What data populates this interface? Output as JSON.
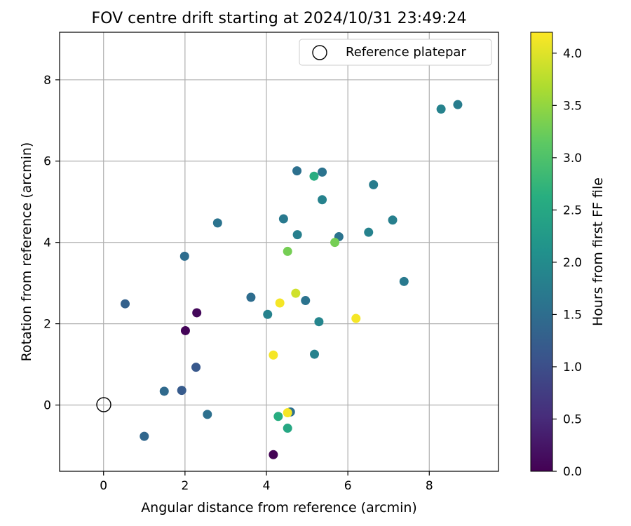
{
  "chart_data": {
    "type": "scatter",
    "title": "FOV centre drift starting at 2024/10/31 23:49:24",
    "xlabel": "Angular distance from reference (arcmin)",
    "ylabel": "Rotation from reference (arcmin)",
    "xlim": [
      -1.08,
      9.7
    ],
    "ylim": [
      -1.63,
      9.17
    ],
    "x_ticks": [
      0,
      2,
      4,
      6,
      8
    ],
    "y_ticks": [
      0,
      2,
      4,
      6,
      8
    ],
    "x_tick_labels": [
      "0",
      "2",
      "4",
      "6",
      "8"
    ],
    "y_tick_labels": [
      "0",
      "2",
      "4",
      "6",
      "8"
    ],
    "grid": true,
    "legend": {
      "placement": "top-right",
      "entries": [
        "Reference platepar"
      ]
    },
    "reference_point": {
      "x": 0,
      "y": 0
    },
    "colorbar": {
      "label": "Hours from first FF file",
      "min": 0.0,
      "max": 4.2,
      "colormap": "viridis",
      "ticks": [
        0.0,
        0.5,
        1.0,
        1.5,
        2.0,
        2.5,
        3.0,
        3.5,
        4.0
      ],
      "tick_labels": [
        "0.0",
        "0.5",
        "1.0",
        "1.5",
        "2.0",
        "2.5",
        "3.0",
        "3.5",
        "4.0"
      ]
    },
    "points": [
      {
        "x": 4.17,
        "y": -1.22,
        "c": 0.02
      },
      {
        "x": 2.01,
        "y": 1.83,
        "c": 0.05
      },
      {
        "x": 2.29,
        "y": 2.27,
        "c": 0.08
      },
      {
        "x": 2.27,
        "y": 0.93,
        "c": 1.15
      },
      {
        "x": 1.92,
        "y": 0.36,
        "c": 1.2
      },
      {
        "x": 0.53,
        "y": 2.49,
        "c": 1.3
      },
      {
        "x": 1.0,
        "y": -0.77,
        "c": 1.4
      },
      {
        "x": 1.49,
        "y": 0.34,
        "c": 1.45
      },
      {
        "x": 2.55,
        "y": -0.23,
        "c": 1.55
      },
      {
        "x": 1.99,
        "y": 3.66,
        "c": 1.5
      },
      {
        "x": 2.8,
        "y": 4.48,
        "c": 1.6
      },
      {
        "x": 3.62,
        "y": 2.65,
        "c": 1.5
      },
      {
        "x": 4.03,
        "y": 2.23,
        "c": 1.85
      },
      {
        "x": 4.42,
        "y": 4.58,
        "c": 1.7
      },
      {
        "x": 4.75,
        "y": 5.76,
        "c": 1.55
      },
      {
        "x": 4.76,
        "y": 4.19,
        "c": 1.8
      },
      {
        "x": 4.96,
        "y": 2.57,
        "c": 1.6
      },
      {
        "x": 4.59,
        "y": -0.17,
        "c": 1.55
      },
      {
        "x": 5.18,
        "y": 1.25,
        "c": 1.85
      },
      {
        "x": 5.29,
        "y": 2.05,
        "c": 1.9
      },
      {
        "x": 5.37,
        "y": 5.05,
        "c": 1.85
      },
      {
        "x": 5.37,
        "y": 5.73,
        "c": 1.6
      },
      {
        "x": 5.78,
        "y": 4.14,
        "c": 1.6
      },
      {
        "x": 6.51,
        "y": 4.25,
        "c": 1.85
      },
      {
        "x": 6.63,
        "y": 5.42,
        "c": 1.75
      },
      {
        "x": 7.1,
        "y": 4.55,
        "c": 1.8
      },
      {
        "x": 7.38,
        "y": 3.04,
        "c": 1.7
      },
      {
        "x": 8.29,
        "y": 7.28,
        "c": 1.85
      },
      {
        "x": 8.7,
        "y": 7.39,
        "c": 1.75
      },
      {
        "x": 5.17,
        "y": 5.63,
        "c": 2.6
      },
      {
        "x": 4.29,
        "y": -0.28,
        "c": 2.6
      },
      {
        "x": 4.52,
        "y": -0.57,
        "c": 2.5
      },
      {
        "x": 4.52,
        "y": 3.78,
        "c": 3.3
      },
      {
        "x": 5.68,
        "y": 4.0,
        "c": 3.3
      },
      {
        "x": 4.72,
        "y": 2.75,
        "c": 3.9
      },
      {
        "x": 4.33,
        "y": 2.51,
        "c": 4.15
      },
      {
        "x": 4.17,
        "y": 1.23,
        "c": 4.15
      },
      {
        "x": 4.52,
        "y": -0.19,
        "c": 4.15
      },
      {
        "x": 6.2,
        "y": 2.13,
        "c": 4.15
      }
    ]
  }
}
